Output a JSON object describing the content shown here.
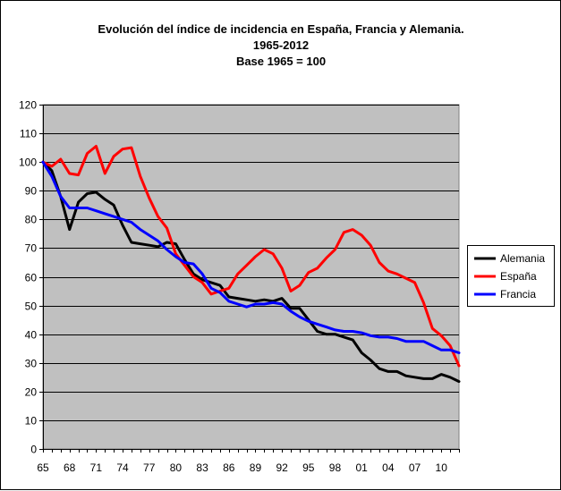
{
  "chart_data": {
    "type": "line",
    "title": [
      "Evolución del índice de incidencia en España, Francia y Alemania.",
      "1965-2012",
      "Base 1965 = 100"
    ],
    "xlabel": "",
    "ylabel": "",
    "ylim": [
      0,
      120
    ],
    "yticks": [
      0,
      10,
      20,
      30,
      40,
      50,
      60,
      70,
      80,
      90,
      100,
      110,
      120
    ],
    "xlim": [
      1965,
      2012
    ],
    "xtick_years": [
      1965,
      1968,
      1971,
      1974,
      1977,
      1980,
      1983,
      1986,
      1989,
      1992,
      1995,
      1998,
      2001,
      2004,
      2007,
      2010
    ],
    "xtick_labels": [
      "65",
      "68",
      "71",
      "74",
      "77",
      "80",
      "83",
      "86",
      "89",
      "92",
      "95",
      "98",
      "01",
      "04",
      "07",
      "10"
    ],
    "grid": "horizontal",
    "plot_background": "#c0c0c0",
    "legend_position": "right",
    "x": [
      1965,
      1966,
      1967,
      1968,
      1969,
      1970,
      1971,
      1972,
      1973,
      1974,
      1975,
      1976,
      1977,
      1978,
      1979,
      1980,
      1981,
      1982,
      1983,
      1984,
      1985,
      1986,
      1987,
      1988,
      1989,
      1990,
      1991,
      1992,
      1993,
      1994,
      1995,
      1996,
      1997,
      1998,
      1999,
      2000,
      2001,
      2002,
      2003,
      2004,
      2005,
      2006,
      2007,
      2008,
      2009,
      2010,
      2011,
      2012
    ],
    "series": [
      {
        "name": "Alemania",
        "color": "#000000",
        "values": [
          100,
          97,
          88,
          76.5,
          86,
          89,
          89.5,
          87,
          85,
          78,
          72,
          71.5,
          71,
          70.5,
          72,
          71.5,
          66,
          61,
          59,
          58,
          57,
          53,
          52.5,
          52,
          51.5,
          52,
          51.5,
          52.5,
          49,
          49,
          45,
          41,
          40,
          40,
          39,
          38,
          33.5,
          31,
          28,
          27,
          27,
          25.5,
          25,
          24.5,
          24.5,
          26,
          25,
          23.5
        ]
      },
      {
        "name": "España",
        "color": "#ff0000",
        "values": [
          100,
          98.5,
          101,
          96,
          95.5,
          103,
          105.5,
          96,
          102,
          104.5,
          105,
          95,
          87.5,
          81,
          77,
          68,
          64,
          60,
          58,
          54,
          55,
          56,
          61,
          64,
          67,
          69.5,
          68,
          63,
          55,
          57,
          61.5,
          63,
          66.5,
          69.5,
          75.5,
          76.5,
          74.5,
          71,
          65,
          62,
          61,
          59.5,
          58,
          51,
          42,
          39.5,
          36,
          29
        ]
      },
      {
        "name": "Francia",
        "color": "#0000ff",
        "values": [
          100,
          95,
          88,
          84,
          84,
          84,
          83,
          82,
          81,
          80,
          79,
          76.5,
          74.5,
          72.5,
          69.5,
          67,
          65,
          64.5,
          61,
          56,
          54.5,
          51.5,
          50.5,
          49.5,
          50.5,
          50.5,
          51,
          50.5,
          48,
          46,
          44.5,
          43.5,
          42.5,
          41.5,
          41,
          41,
          40.5,
          39.5,
          39,
          39,
          38.5,
          37.5,
          37.5,
          37.5,
          36,
          34.5,
          34.5,
          33.5
        ]
      }
    ]
  }
}
